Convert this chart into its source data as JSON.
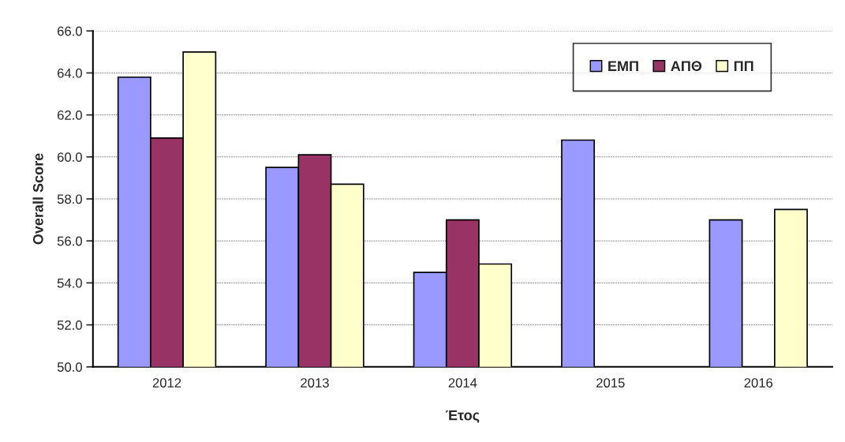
{
  "chart_data": {
    "type": "bar",
    "xlabel": "Έτος",
    "ylabel": "Overall Score",
    "categories": [
      "2012",
      "2013",
      "2014",
      "2015",
      "2016"
    ],
    "series": [
      {
        "name": "ΕΜΠ",
        "color": "#9999ff",
        "values": [
          63.8,
          59.5,
          54.5,
          60.8,
          57.0
        ]
      },
      {
        "name": "ΑΠΘ",
        "color": "#993366",
        "values": [
          60.9,
          60.1,
          57.0,
          null,
          null
        ]
      },
      {
        "name": "ΠΠ",
        "color": "#ffffcc",
        "values": [
          65.0,
          58.7,
          54.9,
          null,
          57.5
        ]
      }
    ],
    "ylim": [
      50,
      66
    ],
    "yticks": [
      {
        "value": 50,
        "label": "50.0"
      },
      {
        "value": 52,
        "label": "52.0"
      },
      {
        "value": 54,
        "label": "54.0"
      },
      {
        "value": 56,
        "label": "56.0"
      },
      {
        "value": 58,
        "label": "58.0"
      },
      {
        "value": 60,
        "label": "60.0"
      },
      {
        "value": 62,
        "label": "62.0"
      },
      {
        "value": 64,
        "label": "64.0"
      },
      {
        "value": 66,
        "label": "66.0"
      }
    ],
    "grid": "y",
    "legend": "top right"
  }
}
